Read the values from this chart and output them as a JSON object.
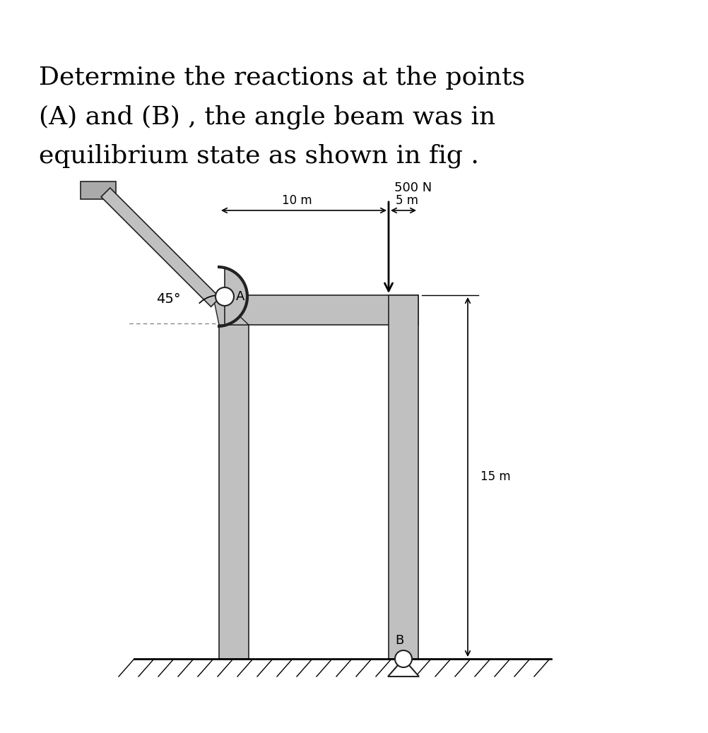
{
  "title_line1": "Determine the reactions at the points",
  "title_line2": "(A) and (B) , the angle beam was in",
  "title_line3": "equilibrium state as shown in fig .",
  "title_fontsize": 26,
  "bg_color": "#ffffff",
  "beam_gray": "#c0c0c0",
  "beam_dark": "#888888",
  "beam_outline": "#222222",
  "force_label": "500 N",
  "dim_10m": "10 m",
  "dim_5m": "5 m",
  "dim_15m": "15 m",
  "angle_label": "45°",
  "label_A": "A",
  "label_B": "B"
}
